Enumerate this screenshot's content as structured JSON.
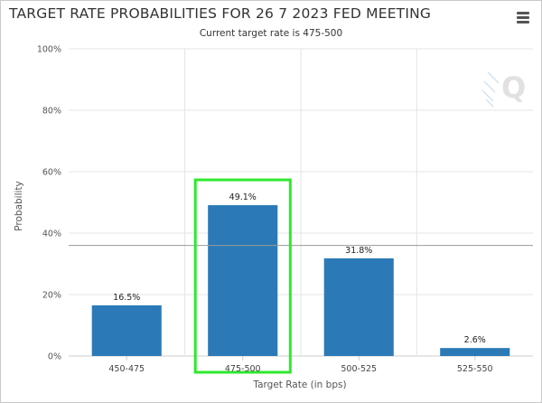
{
  "header": {
    "title": "TARGET RATE PROBABILITIES FOR 26 7 2023 FED MEETING",
    "subtitle": "Current target rate is 475-500",
    "menu_icon": "hamburger-menu-icon",
    "logo_icon": "q-logo-icon",
    "logo_text": "Q"
  },
  "colors": {
    "bar": "#2b7ab7",
    "highlight_box": "#2ee82e",
    "grid": "#e6e6e6"
  },
  "chart_data": {
    "type": "bar",
    "categories": [
      "450-475",
      "475-500",
      "500-525",
      "525-550"
    ],
    "values": [
      16.5,
      49.1,
      31.8,
      2.6
    ],
    "data_labels": [
      "16.5%",
      "49.1%",
      "31.8%",
      "2.6%"
    ],
    "xlabel": "Target Rate (in bps)",
    "ylabel": "Probability",
    "ylim": [
      0,
      100
    ],
    "yticks": [
      0,
      20,
      40,
      60,
      80,
      100
    ],
    "ytick_labels": [
      "0%",
      "20%",
      "40%",
      "60%",
      "80%",
      "100%"
    ],
    "reference_line": 36,
    "highlighted_category": "475-500",
    "grid": true
  }
}
